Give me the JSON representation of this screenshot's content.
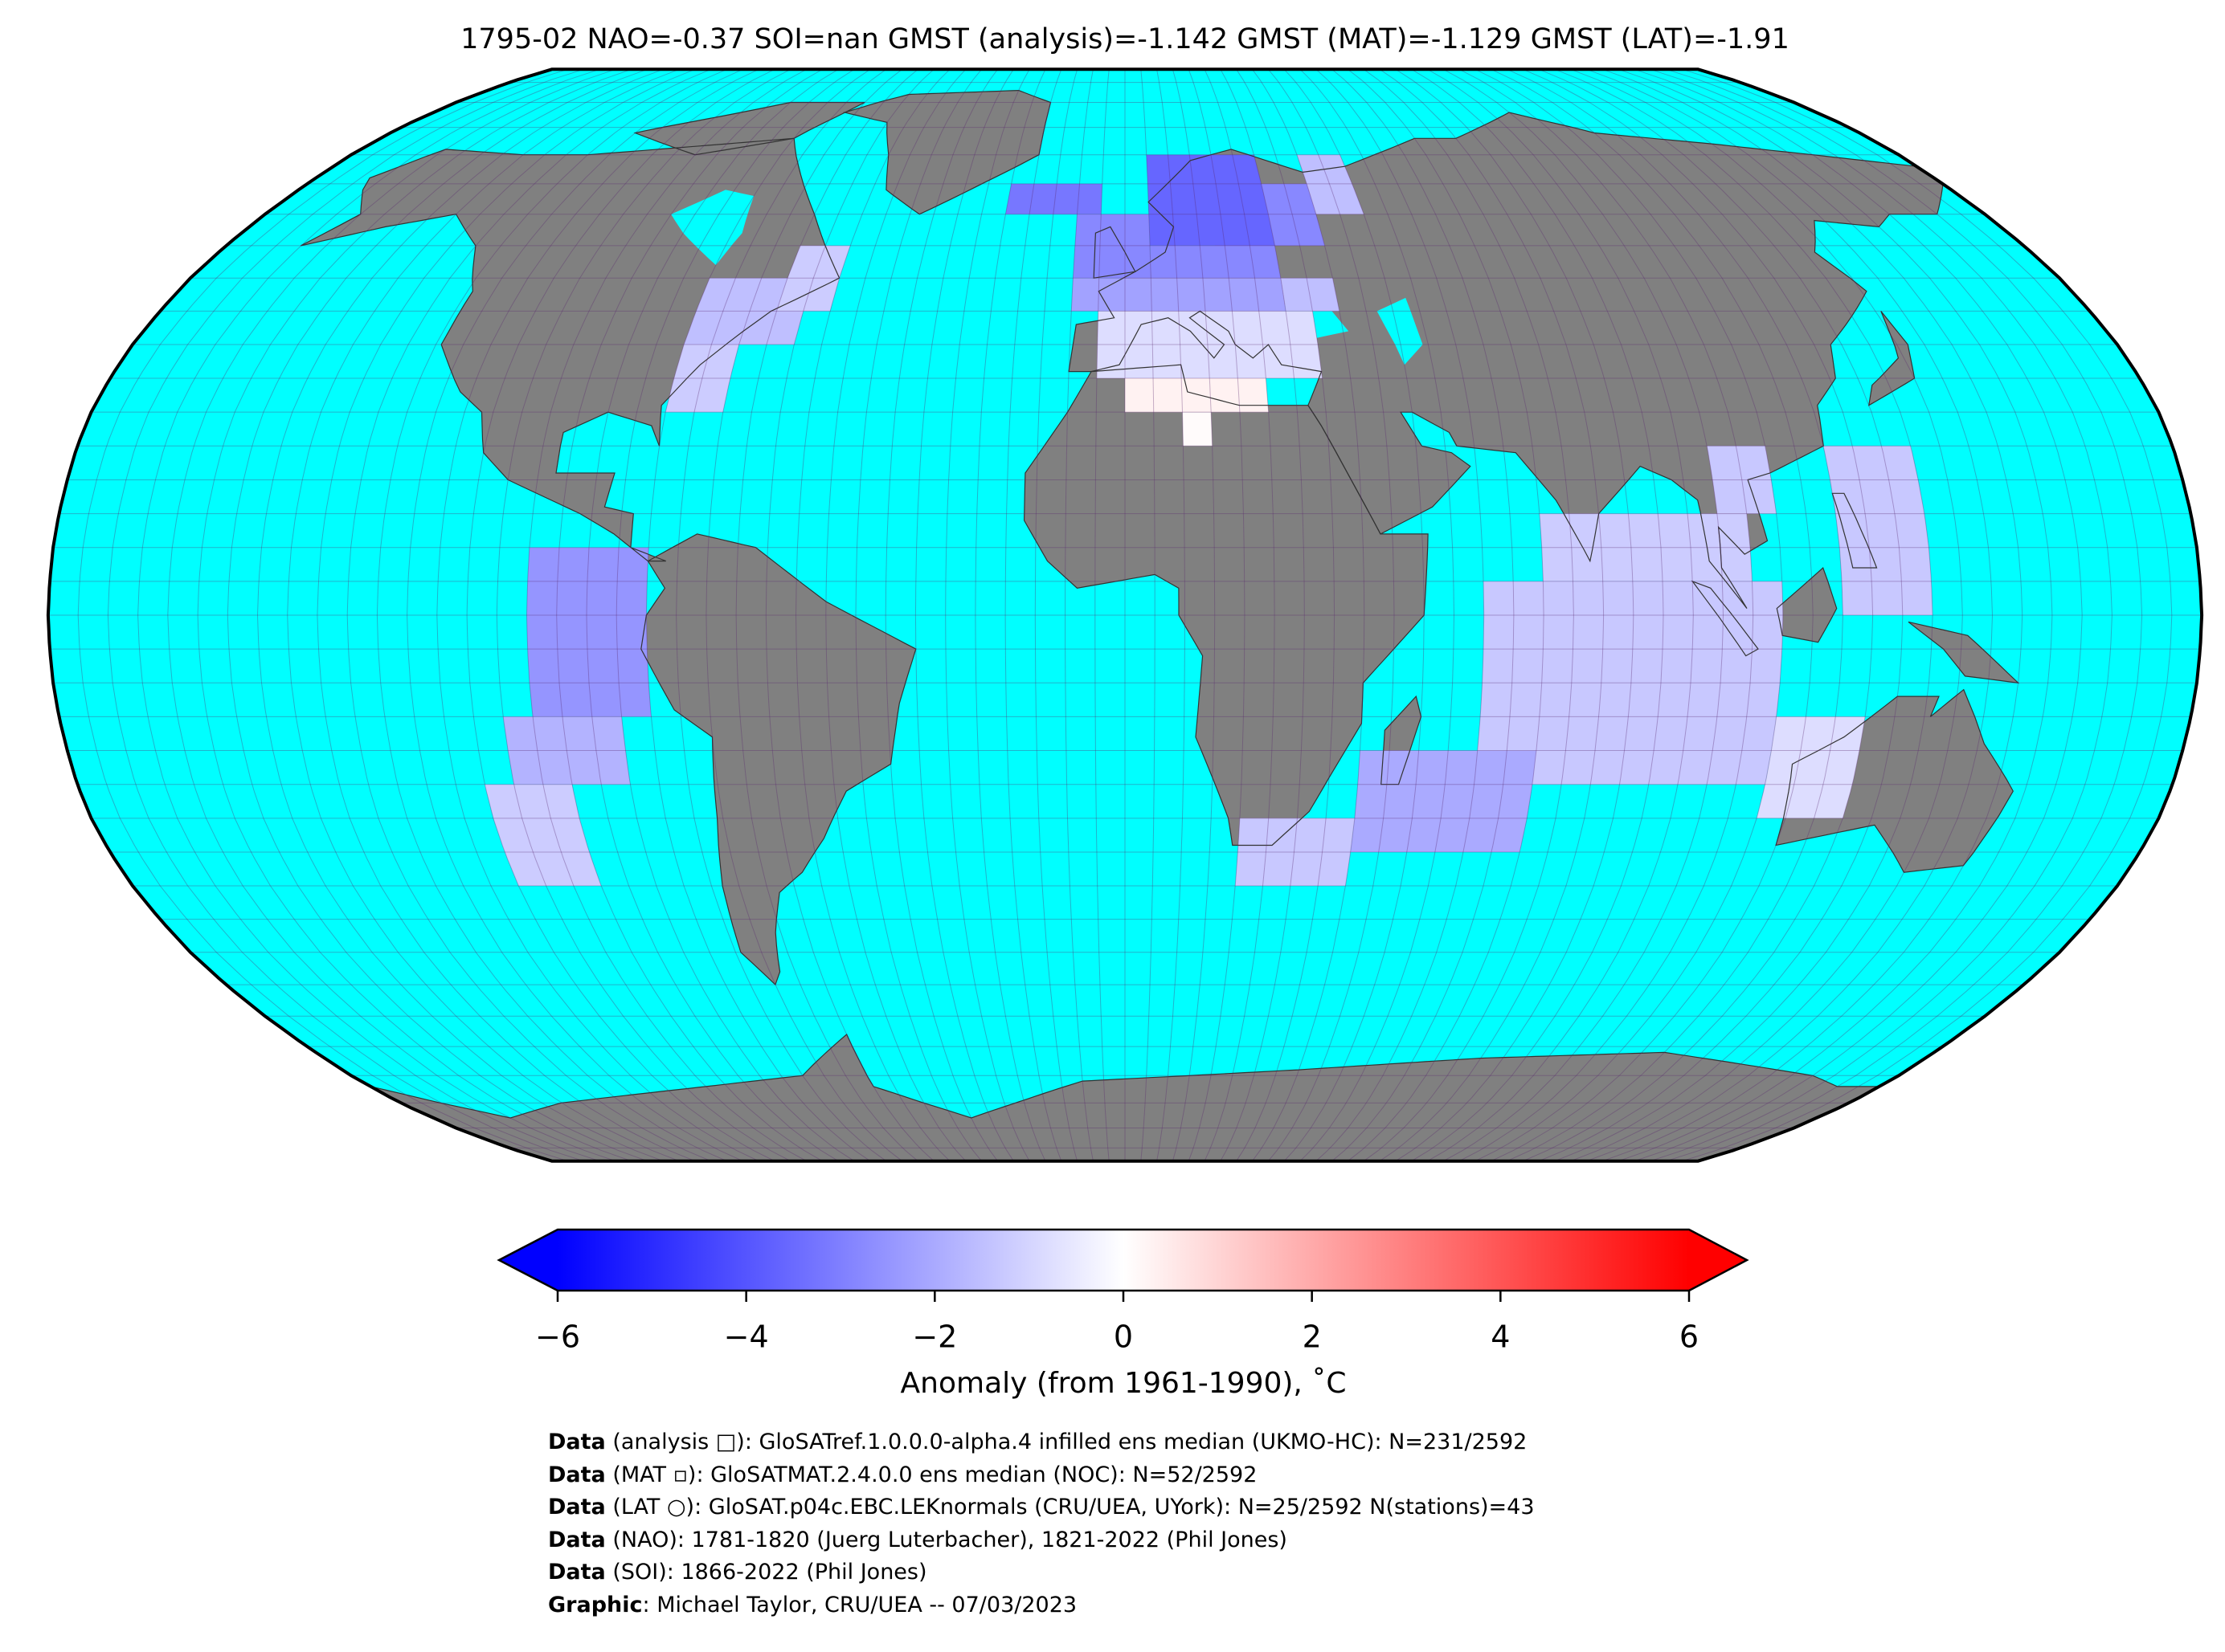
{
  "title": "1795-02 NAO=-0.37 SOI=nan GMST (analysis)=-1.142 GMST (MAT)=-1.129 GMST (LAT)=-1.91",
  "map": {
    "cells": [
      {
        "lon": [
          -80,
          -70
        ],
        "lat": [
          30,
          40
        ],
        "value": -1.2
      },
      {
        "lon": [
          -80,
          -60
        ],
        "lat": [
          40,
          50
        ],
        "value": -1.5
      },
      {
        "lon": [
          -65,
          -55
        ],
        "lat": [
          45,
          55
        ],
        "value": -1.2
      },
      {
        "lon": [
          -25,
          -5
        ],
        "lat": [
          60,
          65
        ],
        "value": -3.2
      },
      {
        "lon": [
          -10,
          5
        ],
        "lat": [
          50,
          60
        ],
        "value": -2.8
      },
      {
        "lon": [
          5,
          30
        ],
        "lat": [
          55,
          70
        ],
        "value": -3.6
      },
      {
        "lon": [
          30,
          40
        ],
        "lat": [
          55,
          65
        ],
        "value": -2.8
      },
      {
        "lon": [
          40,
          50
        ],
        "lat": [
          60,
          70
        ],
        "value": -1.5
      },
      {
        "lon": [
          5,
          30
        ],
        "lat": [
          50,
          55
        ],
        "value": -2.8
      },
      {
        "lon": [
          -10,
          30
        ],
        "lat": [
          45,
          50
        ],
        "value": -2.2
      },
      {
        "lon": [
          30,
          40
        ],
        "lat": [
          45,
          50
        ],
        "value": -1.5
      },
      {
        "lon": [
          -5,
          35
        ],
        "lat": [
          35,
          45
        ],
        "value": -0.8
      },
      {
        "lon": [
          0,
          25
        ],
        "lat": [
          30,
          35
        ],
        "value": 0.3
      },
      {
        "lon": [
          10,
          15
        ],
        "lat": [
          25,
          30
        ],
        "value": 0.1
      },
      {
        "lon": [
          -100,
          -80
        ],
        "lat": [
          -15,
          10
        ],
        "value": -2.5
      },
      {
        "lon": [
          -105,
          -85
        ],
        "lat": [
          -25,
          -15
        ],
        "value": -1.8
      },
      {
        "lon": [
          -110,
          -95
        ],
        "lat": [
          -40,
          -25
        ],
        "value": -1.2
      },
      {
        "lon": [
          60,
          110
        ],
        "lat": [
          -25,
          5
        ],
        "value": -1.3
      },
      {
        "lon": [
          70,
          105
        ],
        "lat": [
          5,
          15
        ],
        "value": -1.2
      },
      {
        "lon": [
          100,
          110
        ],
        "lat": [
          15,
          25
        ],
        "value": -1.3
      },
      {
        "lon": [
          110,
          125
        ],
        "lat": [
          -30,
          -15
        ],
        "value": -0.8
      },
      {
        "lon": [
          120,
          135
        ],
        "lat": [
          0,
          25
        ],
        "value": -1.3
      },
      {
        "lon": [
          40,
          70
        ],
        "lat": [
          -35,
          -20
        ],
        "value": -2
      },
      {
        "lon": [
          20,
          40
        ],
        "lat": [
          -40,
          -30
        ],
        "value": -1.3
      }
    ]
  },
  "chart_data": {
    "type": "colorbar",
    "label": "Anomaly (from 1961-1990), ˚C",
    "xlim": [
      -6,
      6
    ],
    "xticks": [
      {
        "value": -6,
        "label": "−6"
      },
      {
        "value": -4,
        "label": "−4"
      },
      {
        "value": -2,
        "label": "−2"
      },
      0,
      2,
      4,
      6
    ],
    "colormap": [
      "#0000ff",
      "#ffffff",
      "#ff0000"
    ]
  },
  "footer": [
    {
      "label": "Data",
      "text": " (analysis □): GloSATref.1.0.0.0-alpha.4 infilled ens median (UKMO-HC): N=231/2592"
    },
    {
      "label": "Data",
      "text": " (MAT ▫): GloSATMAT.2.4.0.0 ens median (NOC): N=52/2592"
    },
    {
      "label": "Data",
      "text": " (LAT ○): GloSAT.p04c.EBC.LEKnormals (CRU/UEA, UYork): N=25/2592 N(stations)=43"
    },
    {
      "label": "Data",
      "text": " (NAO): 1781-1820 (Juerg Luterbacher), 1821-2022 (Phil Jones)"
    },
    {
      "label": "Data",
      "text": " (SOI): 1866-2022 (Phil Jones)"
    },
    {
      "label": "Graphic",
      "text": ": Michael Taylor, CRU/UEA -- 07/03/2023"
    }
  ]
}
